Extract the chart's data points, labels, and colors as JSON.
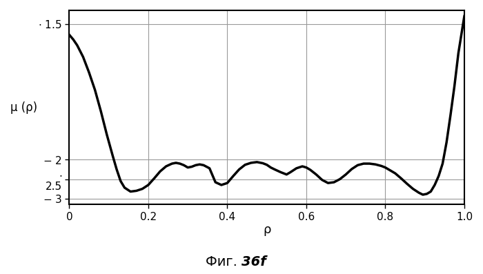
{
  "title": "Фиг. 36f",
  "xlabel": "ρ",
  "ylabel": "μ (ρ)",
  "xlim": [
    0.0,
    1.0
  ],
  "ylim": [
    -3.15,
    1.85
  ],
  "ytick_vals": [
    1.5,
    -2.0,
    -2.5,
    -3.0
  ],
  "ytick_labels": [
    "·  1.5",
    "- 2",
    "·\n2.5",
    "- 3"
  ],
  "xticks": [
    0.0,
    0.2,
    0.4,
    0.6,
    0.8,
    1.0
  ],
  "xtick_labels": [
    "0",
    "0.2",
    "0.4",
    "0.6",
    "0.8",
    "1.0"
  ],
  "grid_color": "#999999",
  "line_color": "#000000",
  "line_width": 2.5,
  "background_color": "#ffffff",
  "x": [
    0.0,
    0.01,
    0.02,
    0.035,
    0.05,
    0.065,
    0.08,
    0.095,
    0.11,
    0.12,
    0.13,
    0.14,
    0.155,
    0.17,
    0.185,
    0.2,
    0.215,
    0.23,
    0.245,
    0.26,
    0.27,
    0.28,
    0.29,
    0.3,
    0.31,
    0.32,
    0.33,
    0.34,
    0.355,
    0.37,
    0.385,
    0.4,
    0.415,
    0.43,
    0.445,
    0.46,
    0.475,
    0.49,
    0.5,
    0.51,
    0.52,
    0.535,
    0.55,
    0.56,
    0.575,
    0.59,
    0.6,
    0.61,
    0.625,
    0.64,
    0.655,
    0.67,
    0.685,
    0.7,
    0.715,
    0.73,
    0.745,
    0.76,
    0.775,
    0.79,
    0.8,
    0.81,
    0.825,
    0.84,
    0.855,
    0.87,
    0.885,
    0.895,
    0.905,
    0.915,
    0.925,
    0.935,
    0.945,
    0.955,
    0.965,
    0.975,
    0.985,
    1.0
  ],
  "y": [
    1.22,
    1.1,
    0.95,
    0.65,
    0.25,
    -0.2,
    -0.75,
    -1.35,
    -1.9,
    -2.25,
    -2.55,
    -2.72,
    -2.82,
    -2.8,
    -2.75,
    -2.65,
    -2.48,
    -2.3,
    -2.17,
    -2.1,
    -2.08,
    -2.1,
    -2.14,
    -2.2,
    -2.18,
    -2.14,
    -2.12,
    -2.14,
    -2.22,
    -2.58,
    -2.65,
    -2.6,
    -2.42,
    -2.25,
    -2.13,
    -2.08,
    -2.06,
    -2.09,
    -2.13,
    -2.2,
    -2.25,
    -2.32,
    -2.38,
    -2.32,
    -2.22,
    -2.17,
    -2.2,
    -2.26,
    -2.38,
    -2.52,
    -2.6,
    -2.58,
    -2.5,
    -2.38,
    -2.24,
    -2.14,
    -2.1,
    -2.1,
    -2.12,
    -2.16,
    -2.2,
    -2.26,
    -2.35,
    -2.48,
    -2.62,
    -2.75,
    -2.85,
    -2.9,
    -2.88,
    -2.82,
    -2.65,
    -2.42,
    -2.1,
    -1.55,
    -0.85,
    -0.1,
    0.75,
    1.7
  ]
}
